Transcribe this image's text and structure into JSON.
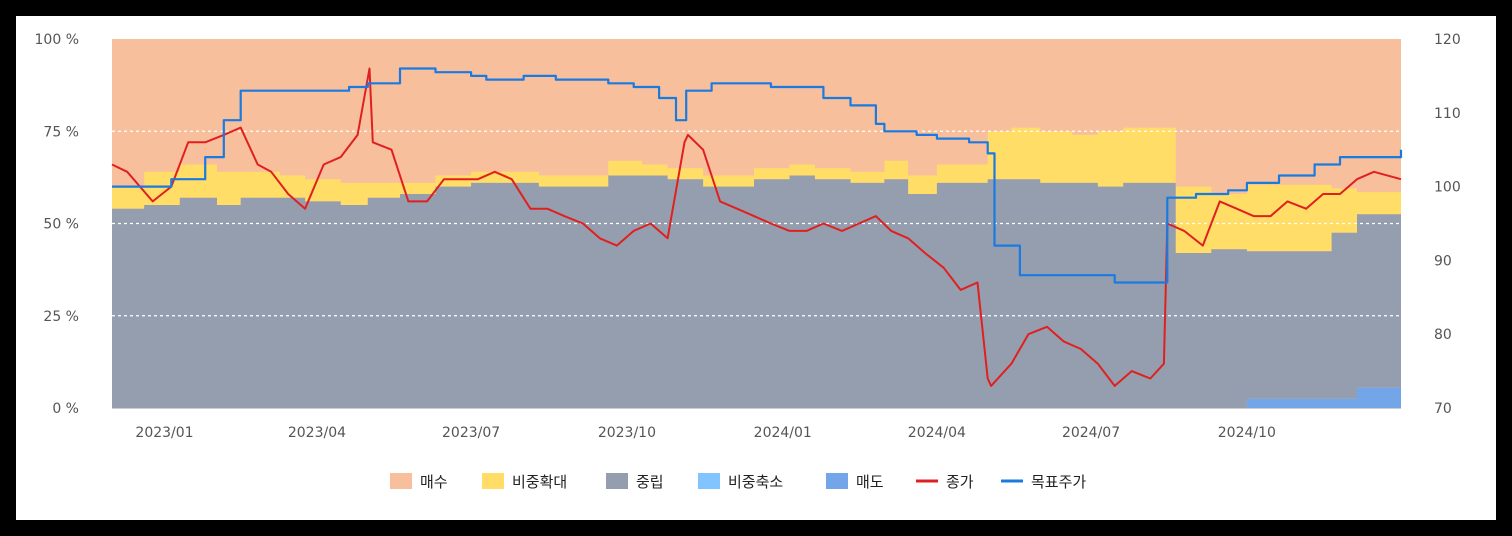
{
  "chart_data": {
    "type": "area",
    "title": "",
    "left_axis": {
      "ylim": [
        0,
        100
      ],
      "ticks": [
        "0 %",
        "25 %",
        "50 %",
        "75 %",
        "100 %"
      ],
      "tick_values": [
        0,
        25,
        50,
        75,
        100
      ]
    },
    "right_axis": {
      "ylim": [
        70,
        120
      ],
      "ticks": [
        "70",
        "80",
        "90",
        "100",
        "110",
        "120"
      ],
      "tick_values": [
        70,
        80,
        90,
        100,
        110,
        120
      ]
    },
    "x_range": [
      "2022-12-01",
      "2024-12-31"
    ],
    "x_ticks": [
      {
        "date": "2023-01-01",
        "label": "2023/01"
      },
      {
        "date": "2023-04-01",
        "label": "2023/04"
      },
      {
        "date": "2023-07-01",
        "label": "2023/07"
      },
      {
        "date": "2023-10-01",
        "label": "2023/10"
      },
      {
        "date": "2024-01-01",
        "label": "2024/01"
      },
      {
        "date": "2024-04-01",
        "label": "2024/04"
      },
      {
        "date": "2024-07-01",
        "label": "2024/07"
      },
      {
        "date": "2024-10-01",
        "label": "2024/10"
      }
    ],
    "grid": "dashed horizontal at 25, 50, 75",
    "legend_position": "bottom",
    "colors": {
      "buy": "#f8bf9c",
      "overweight": "#ffdd66",
      "neutral": "#959eae",
      "underweight": "#82c4ff",
      "sell": "#72a6e8",
      "close": "#e02020",
      "target": "#1a7ae0"
    },
    "legend": [
      {
        "key": "buy",
        "label": "매수",
        "kind": "box"
      },
      {
        "key": "overweight",
        "label": "비중확대",
        "kind": "box"
      },
      {
        "key": "neutral",
        "label": "중립",
        "kind": "box"
      },
      {
        "key": "underweight",
        "label": "비중축소",
        "kind": "box"
      },
      {
        "key": "sell",
        "label": "매도",
        "kind": "box"
      },
      {
        "key": "close",
        "label": "종가",
        "kind": "line"
      },
      {
        "key": "target",
        "label": "목표주가",
        "kind": "line"
      }
    ],
    "stacked_series": {
      "dates": [
        "2022-12-01",
        "2022-12-20",
        "2023-01-10",
        "2023-02-01",
        "2023-02-15",
        "2023-03-10",
        "2023-03-25",
        "2023-04-15",
        "2023-05-01",
        "2023-05-20",
        "2023-06-10",
        "2023-07-01",
        "2023-07-20",
        "2023-08-10",
        "2023-09-01",
        "2023-09-20",
        "2023-10-10",
        "2023-10-25",
        "2023-11-15",
        "2023-12-01",
        "2023-12-15",
        "2024-01-05",
        "2024-01-20",
        "2024-02-10",
        "2024-03-01",
        "2024-03-15",
        "2024-04-01",
        "2024-04-20",
        "2024-05-01",
        "2024-05-15",
        "2024-06-01",
        "2024-06-20",
        "2024-07-05",
        "2024-07-20",
        "2024-08-03",
        "2024-08-20",
        "2024-09-10",
        "2024-10-01",
        "2024-10-20",
        "2024-11-05",
        "2024-11-20",
        "2024-12-05",
        "2024-12-31"
      ],
      "sell": [
        0,
        0,
        0,
        0,
        0,
        0,
        0,
        0,
        0,
        0,
        0,
        0,
        0,
        0,
        0,
        0,
        0,
        0,
        0,
        0,
        0,
        0,
        0,
        0,
        0,
        0,
        0,
        0,
        0,
        0,
        0,
        0,
        0,
        0,
        0,
        0,
        0,
        2.5,
        2.5,
        2.5,
        2.5,
        5.5,
        5.5
      ],
      "underweight": [
        0,
        0,
        0,
        0,
        0,
        0,
        0,
        0,
        0,
        0,
        0,
        0,
        0,
        0,
        0,
        0,
        0,
        0,
        0,
        0,
        0,
        0,
        0,
        0,
        0,
        0,
        0,
        0,
        0,
        0,
        0,
        0,
        0,
        0,
        0,
        0,
        0,
        0,
        0,
        0,
        0,
        0,
        0
      ],
      "neutral": [
        54,
        55,
        57,
        55,
        57,
        57,
        56,
        55,
        57,
        58,
        60,
        61,
        61,
        60,
        60,
        63,
        63,
        62,
        60,
        60,
        62,
        63,
        62,
        61,
        62,
        58,
        61,
        61,
        62,
        62,
        61,
        61,
        60,
        61,
        61,
        42,
        43,
        40,
        40,
        40,
        45,
        47,
        47
      ],
      "overweight": [
        6,
        9,
        9,
        9,
        7,
        6,
        6,
        6,
        4,
        3,
        3,
        3,
        3,
        3,
        3,
        4,
        3,
        3,
        3,
        3,
        3,
        3,
        3,
        3,
        5,
        5,
        5,
        5,
        13,
        14,
        14,
        13,
        15,
        15,
        15,
        18,
        15,
        18,
        18,
        18,
        12,
        6,
        6
      ]
    },
    "close_series": {
      "dates": [
        "2022-12-01",
        "2022-12-10",
        "2022-12-25",
        "2023-01-05",
        "2023-01-15",
        "2023-01-25",
        "2023-02-05",
        "2023-02-15",
        "2023-02-25",
        "2023-03-05",
        "2023-03-15",
        "2023-03-25",
        "2023-04-05",
        "2023-04-15",
        "2023-04-25",
        "2023-05-02",
        "2023-05-04",
        "2023-05-15",
        "2023-05-25",
        "2023-06-05",
        "2023-06-15",
        "2023-06-25",
        "2023-07-05",
        "2023-07-15",
        "2023-07-25",
        "2023-08-05",
        "2023-08-15",
        "2023-08-25",
        "2023-09-05",
        "2023-09-15",
        "2023-09-25",
        "2023-10-05",
        "2023-10-15",
        "2023-10-25",
        "2023-11-04",
        "2023-11-06",
        "2023-11-15",
        "2023-11-25",
        "2023-12-05",
        "2023-12-15",
        "2023-12-25",
        "2024-01-05",
        "2024-01-15",
        "2024-01-25",
        "2024-02-05",
        "2024-02-15",
        "2024-02-25",
        "2024-03-05",
        "2024-03-15",
        "2024-03-25",
        "2024-04-05",
        "2024-04-15",
        "2024-04-25",
        "2024-05-01",
        "2024-05-03",
        "2024-05-15",
        "2024-05-25",
        "2024-06-05",
        "2024-06-15",
        "2024-06-25",
        "2024-07-05",
        "2024-07-15",
        "2024-07-25",
        "2024-08-05",
        "2024-08-13",
        "2024-08-15",
        "2024-08-25",
        "2024-09-05",
        "2024-09-15",
        "2024-09-25",
        "2024-10-05",
        "2024-10-15",
        "2024-10-25",
        "2024-11-05",
        "2024-11-15",
        "2024-11-25",
        "2024-12-05",
        "2024-12-15",
        "2024-12-31"
      ],
      "values": [
        103,
        102,
        98,
        100,
        106,
        106,
        107,
        108,
        103,
        102,
        99,
        97,
        103,
        104,
        107,
        116,
        106,
        105,
        98,
        98,
        101,
        101,
        101,
        102,
        101,
        97,
        97,
        96,
        95,
        93,
        92,
        94,
        95,
        93,
        106,
        107,
        105,
        98,
        97,
        96,
        95,
        94,
        94,
        95,
        94,
        95,
        96,
        94,
        93,
        91,
        89,
        86,
        87,
        74,
        73,
        76,
        80,
        81,
        79,
        78,
        76,
        73,
        75,
        74,
        76,
        95,
        94,
        92,
        98,
        97,
        96,
        96,
        98,
        97,
        99,
        99,
        101,
        102,
        101
      ]
    },
    "target_series": {
      "dates": [
        "2022-12-01",
        "2023-01-05",
        "2023-01-25",
        "2023-02-05",
        "2023-02-15",
        "2023-03-01",
        "2023-03-20",
        "2023-04-20",
        "2023-05-01",
        "2023-05-20",
        "2023-06-10",
        "2023-07-01",
        "2023-07-10",
        "2023-08-01",
        "2023-08-20",
        "2023-09-20",
        "2023-10-05",
        "2023-10-20",
        "2023-10-30",
        "2023-11-05",
        "2023-11-20",
        "2023-12-05",
        "2023-12-25",
        "2024-01-10",
        "2024-01-25",
        "2024-02-10",
        "2024-02-25",
        "2024-03-01",
        "2024-03-20",
        "2024-04-01",
        "2024-04-20",
        "2024-05-01",
        "2024-05-05",
        "2024-05-20",
        "2024-06-10",
        "2024-07-01",
        "2024-07-15",
        "2024-08-10",
        "2024-08-15",
        "2024-09-01",
        "2024-09-20",
        "2024-10-01",
        "2024-10-20",
        "2024-11-10",
        "2024-11-25",
        "2024-12-31"
      ],
      "values": [
        100,
        101,
        104,
        109,
        113,
        113,
        113,
        113.5,
        114,
        116,
        115.5,
        115,
        114.5,
        115,
        114.5,
        114,
        113.5,
        112,
        109,
        113,
        114,
        114,
        113.5,
        113.5,
        112,
        111,
        108.5,
        107.5,
        107,
        106.5,
        106,
        104.5,
        92,
        88,
        88,
        88,
        87,
        87,
        98.5,
        99,
        99.5,
        100.5,
        101.5,
        103,
        104,
        105
      ]
    }
  }
}
